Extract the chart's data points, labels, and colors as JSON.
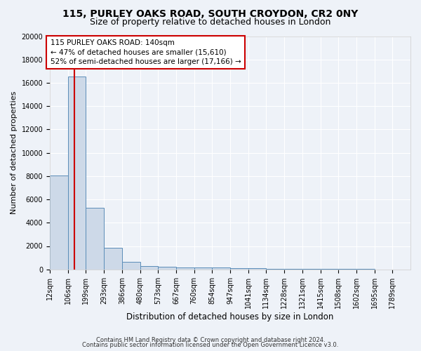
{
  "title1": "115, PURLEY OAKS ROAD, SOUTH CROYDON, CR2 0NY",
  "title2": "Size of property relative to detached houses in London",
  "xlabel": "Distribution of detached houses by size in London",
  "ylabel": "Number of detached properties",
  "bins": [
    12,
    106,
    199,
    293,
    386,
    480,
    573,
    667,
    760,
    854,
    947,
    1041,
    1134,
    1228,
    1321,
    1415,
    1508,
    1602,
    1695,
    1789,
    1882
  ],
  "counts": [
    8050,
    16550,
    5300,
    1850,
    650,
    300,
    225,
    190,
    170,
    145,
    95,
    75,
    55,
    45,
    35,
    28,
    22,
    18,
    13,
    9
  ],
  "bar_color": "#cdd9e8",
  "bar_edge_color": "#5b8db8",
  "property_sqm": 140,
  "property_line_color": "#cc0000",
  "annotation_line1": "115 PURLEY OAKS ROAD: 140sqm",
  "annotation_line2": "← 47% of detached houses are smaller (15,610)",
  "annotation_line3": "52% of semi-detached houses are larger (17,166) →",
  "annotation_box_color": "#ffffff",
  "annotation_border_color": "#cc0000",
  "ylim": [
    0,
    20000
  ],
  "yticks": [
    0,
    2000,
    4000,
    6000,
    8000,
    10000,
    12000,
    14000,
    16000,
    18000,
    20000
  ],
  "footnote1": "Contains HM Land Registry data © Crown copyright and database right 2024.",
  "footnote2": "Contains public sector information licensed under the Open Government Licence v3.0.",
  "background_color": "#eef2f8",
  "plot_background_color": "#eef2f8",
  "grid_color": "#ffffff",
  "title1_fontsize": 10,
  "title2_fontsize": 9,
  "tick_label_fontsize": 7,
  "ylabel_fontsize": 8,
  "xlabel_fontsize": 8.5,
  "annotation_fontsize": 7.5,
  "footnote_fontsize": 6
}
